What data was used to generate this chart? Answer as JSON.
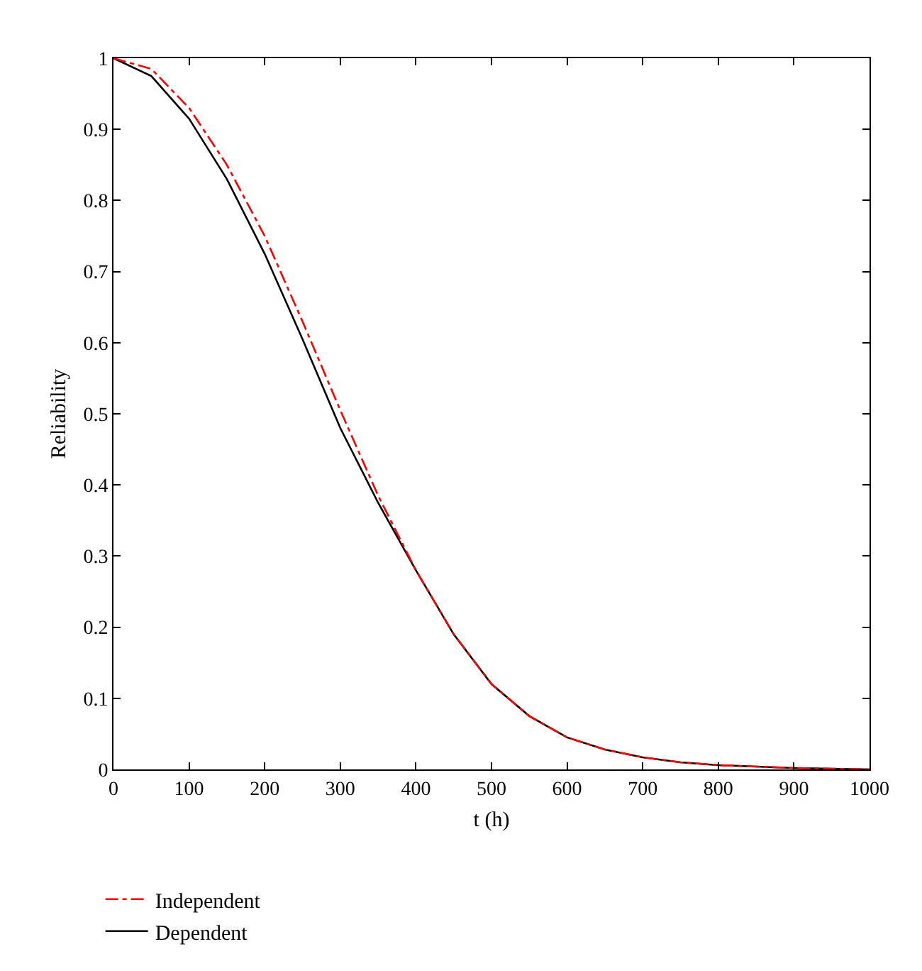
{
  "chart_data": {
    "type": "line",
    "xlabel": "t (h)",
    "ylabel": "Reliability",
    "x": [
      0,
      50,
      100,
      150,
      200,
      250,
      300,
      350,
      400,
      450,
      500,
      550,
      600,
      650,
      700,
      750,
      800,
      850,
      900,
      950,
      1000
    ],
    "series": [
      {
        "name": "Independent",
        "color": "#ff0000",
        "line_style": "dashdot",
        "values": [
          1,
          0.985,
          0.93,
          0.85,
          0.75,
          0.63,
          0.505,
          0.385,
          0.28,
          0.19,
          0.12,
          0.075,
          0.045,
          0.028,
          0.017,
          0.01,
          0.006,
          0.004,
          0.002,
          0.001,
          0
        ]
      },
      {
        "name": "Dependent",
        "color": "#000000",
        "line_style": "solid",
        "values": [
          1,
          0.975,
          0.915,
          0.83,
          0.725,
          0.605,
          0.48,
          0.375,
          0.28,
          0.19,
          0.12,
          0.075,
          0.045,
          0.028,
          0.017,
          0.01,
          0.006,
          0.004,
          0.002,
          0.001,
          0
        ]
      }
    ],
    "xlim": [
      0,
      1000
    ],
    "xticks": [
      0,
      100,
      200,
      300,
      400,
      500,
      600,
      700,
      800,
      900,
      1000
    ],
    "ylim": [
      0,
      1
    ],
    "yticks": [
      0,
      0.1,
      0.2,
      0.3,
      0.4,
      0.5,
      0.6,
      0.7,
      0.8,
      0.9,
      1
    ],
    "legend": "bottom left",
    "marker": "none"
  }
}
